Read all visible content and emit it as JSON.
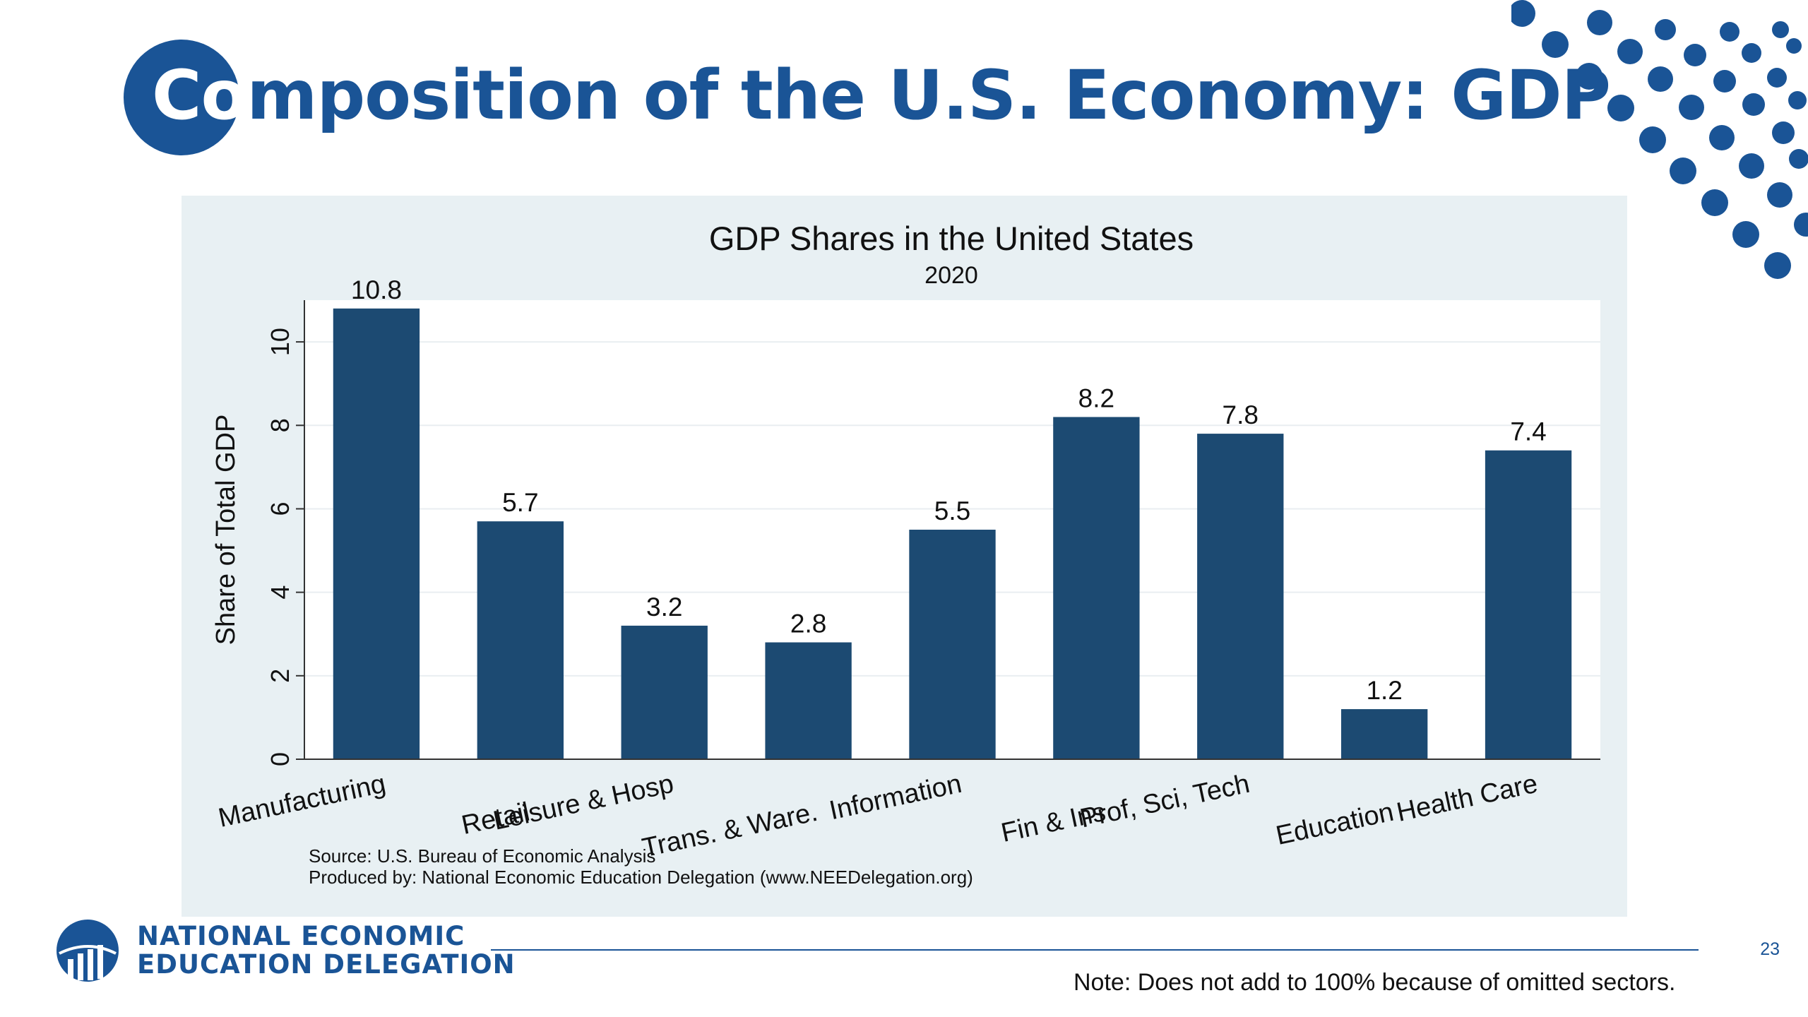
{
  "slide": {
    "title_lead": "Co",
    "title_rest": "mposition of the U.S. Economy: GDP",
    "page_number": "23",
    "note": "Note: Does not add to 100% because of omitted sectors."
  },
  "footer": {
    "org_line1": "NATIONAL ECONOMIC",
    "org_line2": "EDUCATION DELEGATION",
    "logo_icon": "nee-globe-bars-icon"
  },
  "colors": {
    "brand": "#1a5496",
    "bar": "#1c4a72",
    "panel": "#e8f0f3"
  },
  "chart_data": {
    "type": "bar",
    "title": "GDP Shares in the United States",
    "subtitle": "2020",
    "xlabel": "",
    "ylabel": "Share of Total GDP",
    "ylim": [
      0,
      11
    ],
    "yticks": [
      0,
      2,
      4,
      6,
      8,
      10
    ],
    "grid": true,
    "categories": [
      "Manufacturing",
      "Retail",
      "Leisure & Hosp",
      "Trans. & Ware.",
      "Information",
      "Fin & Ins",
      "Prof, Sci, Tech",
      "Education",
      "Health Care"
    ],
    "values": [
      10.8,
      5.7,
      3.2,
      2.8,
      5.5,
      8.2,
      7.8,
      1.2,
      7.4
    ],
    "value_labels": [
      "10.8",
      "5.7",
      "3.2",
      "2.8",
      "5.5",
      "8.2",
      "7.8",
      "1.2",
      "7.4"
    ],
    "source_lines": [
      "Source: U.S. Bureau of Economic Analysis",
      "Produced by: National Economic Education Delegation (www.NEEDelegation.org)"
    ]
  }
}
